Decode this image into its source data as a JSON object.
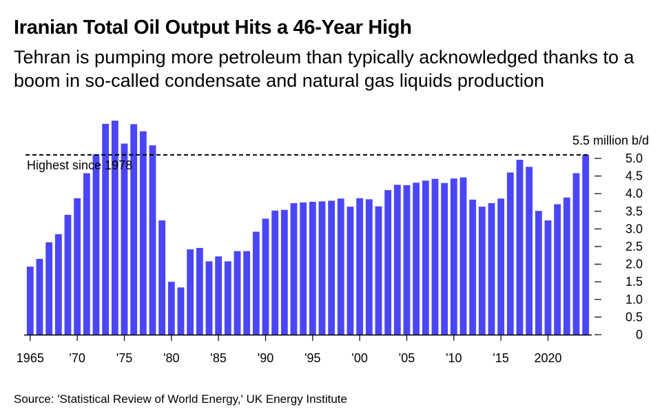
{
  "header": {
    "title": "Iranian Total Oil Output Hits a 46-Year High",
    "subtitle": "Tehran is pumping more petroleum than typically acknowledged thanks to a boom in so-called condensate and natural gas liquids production"
  },
  "footer": {
    "source": "Source: 'Statistical Review of World Energy,' UK Energy Institute"
  },
  "colors": {
    "bar": "#4b46f5",
    "axis": "#000000",
    "reference_line": "#000000"
  },
  "chart_data": {
    "type": "bar",
    "title": "Iranian Total Oil Output Hits a 46-Year High",
    "unit_label": "5.5 million b/d",
    "x": [
      1965,
      1966,
      1967,
      1968,
      1969,
      1970,
      1971,
      1972,
      1973,
      1974,
      1975,
      1976,
      1977,
      1978,
      1979,
      1980,
      1981,
      1982,
      1983,
      1984,
      1985,
      1986,
      1987,
      1988,
      1989,
      1990,
      1991,
      1992,
      1993,
      1994,
      1995,
      1996,
      1997,
      1998,
      1999,
      2000,
      2001,
      2002,
      2003,
      2004,
      2005,
      2006,
      2007,
      2008,
      2009,
      2010,
      2011,
      2012,
      2013,
      2014,
      2015,
      2016,
      2017,
      2018,
      2019,
      2020,
      2021,
      2022,
      2023,
      2024
    ],
    "values": [
      1.93,
      2.15,
      2.62,
      2.85,
      3.4,
      3.87,
      4.58,
      5.11,
      5.98,
      6.07,
      5.42,
      5.97,
      5.77,
      5.37,
      3.24,
      1.5,
      1.34,
      2.42,
      2.46,
      2.08,
      2.22,
      2.08,
      2.37,
      2.37,
      2.92,
      3.29,
      3.52,
      3.54,
      3.73,
      3.75,
      3.77,
      3.78,
      3.8,
      3.86,
      3.63,
      3.87,
      3.84,
      3.64,
      4.1,
      4.25,
      4.24,
      4.31,
      4.37,
      4.42,
      4.3,
      4.43,
      4.46,
      3.83,
      3.63,
      3.73,
      3.86,
      4.6,
      4.96,
      4.76,
      3.51,
      3.24,
      3.7,
      3.89,
      4.58,
      5.1
    ],
    "x_tick_labels": [
      {
        "year": 1965,
        "label": "1965"
      },
      {
        "year": 1970,
        "label": "'70"
      },
      {
        "year": 1975,
        "label": "'75"
      },
      {
        "year": 1980,
        "label": "'80"
      },
      {
        "year": 1985,
        "label": "'85"
      },
      {
        "year": 1990,
        "label": "'90"
      },
      {
        "year": 1995,
        "label": "'95"
      },
      {
        "year": 2000,
        "label": "'00"
      },
      {
        "year": 2005,
        "label": "'05"
      },
      {
        "year": 2010,
        "label": "'10"
      },
      {
        "year": 2015,
        "label": "'15"
      },
      {
        "year": 2020,
        "label": "2020"
      }
    ],
    "y_ticks": [
      {
        "value": 0,
        "label": "0"
      },
      {
        "value": 0.5,
        "label": "0.5"
      },
      {
        "value": 1.0,
        "label": "1.0"
      },
      {
        "value": 1.5,
        "label": "1.5"
      },
      {
        "value": 2.0,
        "label": "2.0"
      },
      {
        "value": 2.5,
        "label": "2.5"
      },
      {
        "value": 3.0,
        "label": "3.0"
      },
      {
        "value": 3.5,
        "label": "3.5"
      },
      {
        "value": 4.0,
        "label": "4.0"
      },
      {
        "value": 4.5,
        "label": "4.5"
      },
      {
        "value": 5.0,
        "label": "5.0"
      }
    ],
    "ylim": [
      0,
      5.5
    ],
    "y_axis_side": "right",
    "grid": false,
    "reference_line": {
      "value": 5.1,
      "style": "dashed",
      "label": "Highest since 1978"
    }
  }
}
